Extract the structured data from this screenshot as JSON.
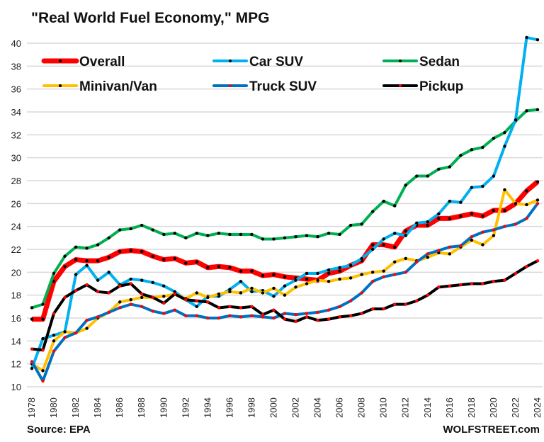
{
  "chart_data": {
    "type": "line",
    "title": "\"Real World Fuel Economy,\" MPG",
    "xlabel": "",
    "ylabel": "",
    "ylim": [
      10,
      41
    ],
    "yticks": [
      10,
      12,
      14,
      16,
      18,
      20,
      22,
      24,
      26,
      28,
      30,
      32,
      34,
      36,
      38,
      40
    ],
    "xlim": [
      1978,
      2024
    ],
    "xticks": [
      1978,
      1980,
      1982,
      1984,
      1986,
      1988,
      1990,
      1992,
      1994,
      1996,
      1998,
      2000,
      2002,
      2004,
      2006,
      2008,
      2010,
      2012,
      2014,
      2016,
      2018,
      2020,
      2022,
      2024
    ],
    "grid": "horizontal",
    "legend": "top, 3 columns",
    "x": [
      1978,
      1979,
      1980,
      1981,
      1982,
      1983,
      1984,
      1985,
      1986,
      1987,
      1988,
      1989,
      1990,
      1991,
      1992,
      1993,
      1994,
      1995,
      1996,
      1997,
      1998,
      1999,
      2000,
      2001,
      2002,
      2003,
      2004,
      2005,
      2006,
      2007,
      2008,
      2009,
      2010,
      2011,
      2012,
      2013,
      2014,
      2015,
      2016,
      2017,
      2018,
      2019,
      2020,
      2021,
      2022,
      2023,
      2024
    ],
    "series": [
      {
        "name": "Overall",
        "color": "#ff0000",
        "marker": "#000000",
        "values": [
          15.9,
          15.9,
          19.2,
          20.5,
          21.1,
          21.0,
          21.0,
          21.3,
          21.8,
          21.9,
          21.8,
          21.4,
          21.1,
          21.2,
          20.8,
          20.9,
          20.4,
          20.5,
          20.4,
          20.1,
          20.1,
          19.7,
          19.8,
          19.6,
          19.5,
          19.4,
          19.3,
          19.9,
          20.1,
          20.6,
          21.0,
          22.4,
          22.4,
          22.2,
          23.6,
          24.1,
          24.1,
          24.7,
          24.7,
          24.9,
          25.1,
          24.9,
          25.4,
          25.4,
          26.0,
          27.1,
          27.9
        ]
      },
      {
        "name": "Car SUV",
        "color": "#00b0f0",
        "marker": "#000000",
        "values": [
          11.6,
          14.2,
          14.5,
          14.8,
          19.8,
          20.6,
          19.3,
          20.0,
          18.9,
          19.4,
          19.3,
          19.1,
          18.8,
          18.3,
          17.6,
          17.0,
          17.9,
          17.9,
          18.5,
          19.2,
          18.3,
          18.4,
          17.9,
          18.8,
          19.3,
          19.9,
          19.9,
          20.2,
          20.4,
          20.6,
          21.2,
          22.0,
          22.9,
          23.4,
          23.2,
          24.3,
          24.4,
          25.1,
          26.2,
          26.1,
          27.4,
          27.5,
          28.4,
          31.0,
          33.3,
          40.5,
          40.3
        ]
      },
      {
        "name": "Sedan",
        "color": "#00b050",
        "marker": "#000000",
        "values": [
          16.9,
          17.2,
          19.9,
          21.4,
          22.2,
          22.1,
          22.4,
          23.0,
          23.7,
          23.8,
          24.1,
          23.7,
          23.3,
          23.4,
          23.0,
          23.4,
          23.2,
          23.4,
          23.3,
          23.3,
          23.3,
          22.9,
          22.9,
          23.0,
          23.1,
          23.2,
          23.1,
          23.4,
          23.3,
          24.1,
          24.2,
          25.3,
          26.2,
          25.8,
          27.6,
          28.4,
          28.4,
          29.0,
          29.2,
          30.2,
          30.7,
          30.9,
          31.7,
          32.2,
          33.2,
          34.1,
          34.2
        ]
      },
      {
        "name": "Minivan/Van",
        "color": "#ffc000",
        "marker": "#000000",
        "values": [
          12.0,
          11.4,
          14.0,
          14.8,
          14.7,
          15.1,
          16.0,
          16.5,
          17.4,
          17.6,
          17.8,
          17.8,
          17.9,
          18.1,
          17.7,
          18.2,
          17.8,
          18.1,
          18.3,
          18.2,
          18.6,
          18.2,
          18.6,
          18.0,
          18.7,
          19.0,
          19.3,
          19.2,
          19.4,
          19.5,
          19.8,
          20.0,
          20.1,
          20.9,
          21.2,
          21.0,
          21.3,
          21.7,
          21.6,
          22.2,
          22.8,
          22.4,
          23.2,
          27.2,
          26.0,
          25.9,
          26.3
        ]
      },
      {
        "name": "Truck SUV",
        "color": "#0070c0",
        "marker": "#ff0000",
        "values": [
          12.2,
          10.5,
          13.1,
          14.3,
          14.7,
          15.8,
          16.1,
          16.5,
          16.9,
          17.2,
          17.0,
          16.6,
          16.4,
          16.7,
          16.2,
          16.2,
          16.0,
          16.0,
          16.2,
          16.1,
          16.2,
          16.1,
          16.0,
          16.4,
          16.3,
          16.4,
          16.5,
          16.7,
          17.0,
          17.5,
          18.2,
          19.2,
          19.6,
          19.8,
          20.0,
          20.9,
          21.6,
          21.9,
          22.2,
          22.3,
          23.1,
          23.5,
          23.7,
          24.0,
          24.2,
          24.7,
          26.0
        ]
      },
      {
        "name": "Pickup",
        "color": "#000000",
        "marker": "#ff0000",
        "values": [
          13.3,
          13.2,
          16.4,
          17.8,
          18.4,
          18.9,
          18.3,
          18.2,
          18.8,
          19.0,
          18.1,
          17.8,
          17.3,
          18.1,
          17.6,
          17.5,
          17.4,
          16.9,
          17.0,
          16.9,
          17.0,
          16.3,
          16.7,
          15.9,
          15.7,
          16.1,
          15.8,
          15.9,
          16.1,
          16.2,
          16.4,
          16.8,
          16.8,
          17.2,
          17.2,
          17.5,
          18.0,
          18.7,
          18.8,
          18.9,
          19.0,
          19.0,
          19.2,
          19.3,
          19.9,
          20.5,
          21.0
        ]
      }
    ]
  },
  "footer": {
    "source": "Source: EPA",
    "brand": "WOLFSTREET.com"
  }
}
